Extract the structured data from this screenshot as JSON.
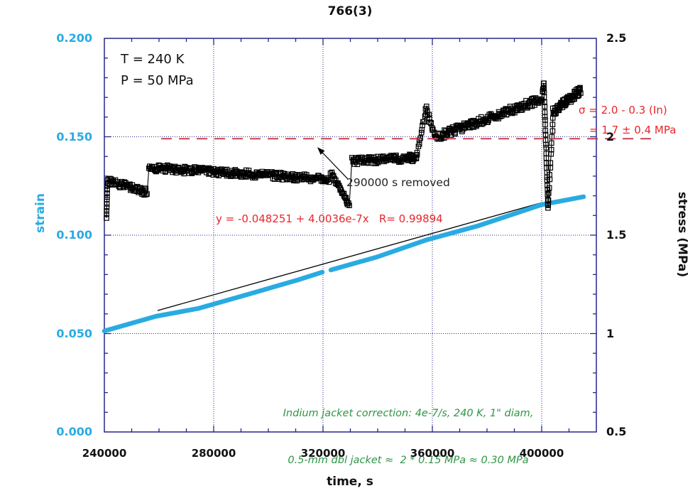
{
  "title": "766(3)",
  "colors": {
    "axis_frame": "#26268C",
    "grid": "#26268C",
    "strain_cyan": "#29ABE2",
    "stress_black": "#000000",
    "red_text": "#E8262A",
    "red_dash": "#C84052",
    "green_text": "#2E9646",
    "note_gray": "#222222"
  },
  "axes": {
    "x": {
      "title": "time, s",
      "min": 240000,
      "max": 420000,
      "major_step": 40000,
      "minor_step": 10000,
      "tick_values": [
        240000,
        280000,
        320000,
        360000,
        400000
      ],
      "tick_labels": [
        "240000",
        "280000",
        "320000",
        "360000",
        "400000"
      ],
      "grid_values": [
        280000,
        320000,
        360000,
        400000
      ]
    },
    "y_left": {
      "title": "strain",
      "min": 0,
      "max": 0.2,
      "major_step": 0.05,
      "minor_step": 0.01,
      "tick_values": [
        0,
        0.05,
        0.1,
        0.15,
        0.2
      ],
      "tick_labels": [
        "0.000",
        "0.050",
        "0.100",
        "0.150",
        "0.200"
      ],
      "grid_values": [
        0.05,
        0.1,
        0.15
      ]
    },
    "y_right": {
      "title": "stress (MPa)",
      "min": 0.5,
      "max": 2.5,
      "major_step": 0.5,
      "minor_step": 0.1,
      "tick_values": [
        0.5,
        1,
        1.5,
        2,
        2.5
      ],
      "tick_labels": [
        "0.5",
        "1",
        "1.5",
        "2",
        "2.5"
      ]
    }
  },
  "annotations": {
    "conditions_line1": "T = 240 K",
    "conditions_line2": "P = 50 MPa",
    "removed_note": "290000 s removed",
    "sigma_line1": "σ = 2.0 - 0.3 (In)",
    "sigma_line2": "= 1.7 ± 0.4 MPa",
    "fit_equation": "y = -0.048251 + 4.0036e-7x   R= 0.99894",
    "indium_line1": "Indium jacket correction: 4e-7/s, 240 K, 1\" diam,",
    "indium_line2": "0.5-mm dbl jacket ≈  2 * 0.15 MPa ≈ 0.30 MPa"
  },
  "chart_data": {
    "type": "scatter",
    "title": "766(3)",
    "xlabel": "time, s",
    "x_range": [
      240000,
      420000
    ],
    "left_axis": {
      "label": "strain",
      "range": [
        0,
        0.2
      ]
    },
    "right_axis": {
      "label": "stress (MPa)",
      "range": [
        0.5,
        2.5
      ]
    },
    "grid": "dotted at major ticks",
    "series": [
      {
        "name": "stress",
        "axis": "right",
        "marker": "open-square",
        "color": "#000000",
        "noisy_segments": [
          [
            240779,
            1.587,
            241169,
            1.785,
            12,
            0.004
          ],
          [
            241558,
            1.778,
            255584,
            1.717,
            60,
            0.018
          ],
          [
            256364,
            1.843,
            322078,
            1.785,
            270,
            0.019
          ],
          [
            322857,
            1.818,
            329610,
            1.652,
            30,
            0.01
          ],
          [
            330649,
            1.875,
            354026,
            1.894,
            100,
            0.019
          ],
          [
            354026,
            1.894,
            357922,
            2.153,
            16,
            0.01
          ],
          [
            357922,
            2.135,
            361039,
            1.998,
            14,
            0.01
          ],
          [
            361039,
            1.998,
            400000,
            2.19,
            170,
            0.021
          ],
          [
            400260,
            2.226,
            400779,
            2.269,
            5,
            0.006
          ],
          [
            400779,
            2.269,
            402338,
            1.634,
            28,
            0.005
          ],
          [
            402338,
            1.648,
            404156,
            2.1,
            15,
            0.007
          ],
          [
            404156,
            2.125,
            414286,
            2.237,
            70,
            0.021
          ]
        ]
      },
      {
        "name": "strain",
        "axis": "left",
        "style": "thick-line",
        "color": "#29ABE2",
        "segments": [
          [
            [
              240000,
              0.0513
            ],
            [
              258961,
              0.0588
            ],
            [
              274545,
              0.0628
            ],
            [
              292727,
              0.07
            ],
            [
              310909,
              0.0773
            ],
            [
              319740,
              0.0812
            ]
          ],
          [
            [
              322857,
              0.0823
            ],
            [
              339480,
              0.0888
            ],
            [
              357662,
              0.0975
            ],
            [
              376623,
              0.1047
            ],
            [
              400000,
              0.1155
            ],
            [
              415325,
              0.1195
            ]
          ]
        ]
      },
      {
        "name": "linear-fit-line",
        "axis": "left",
        "style": "thin-line",
        "color": "#000000",
        "points": [
          [
            259481,
            0.0617
          ],
          [
            400260,
            0.1166
          ]
        ]
      },
      {
        "name": "sigma-reference-dashed-line",
        "axis": "right",
        "style": "dashed",
        "color": "#C84052",
        "stress": 1.99,
        "t_range": [
          260800,
          441500
        ]
      }
    ],
    "arrow": {
      "from_t": 329100,
      "from_stress": 1.785,
      "to_t": 317900,
      "to_stress": 1.947
    }
  }
}
